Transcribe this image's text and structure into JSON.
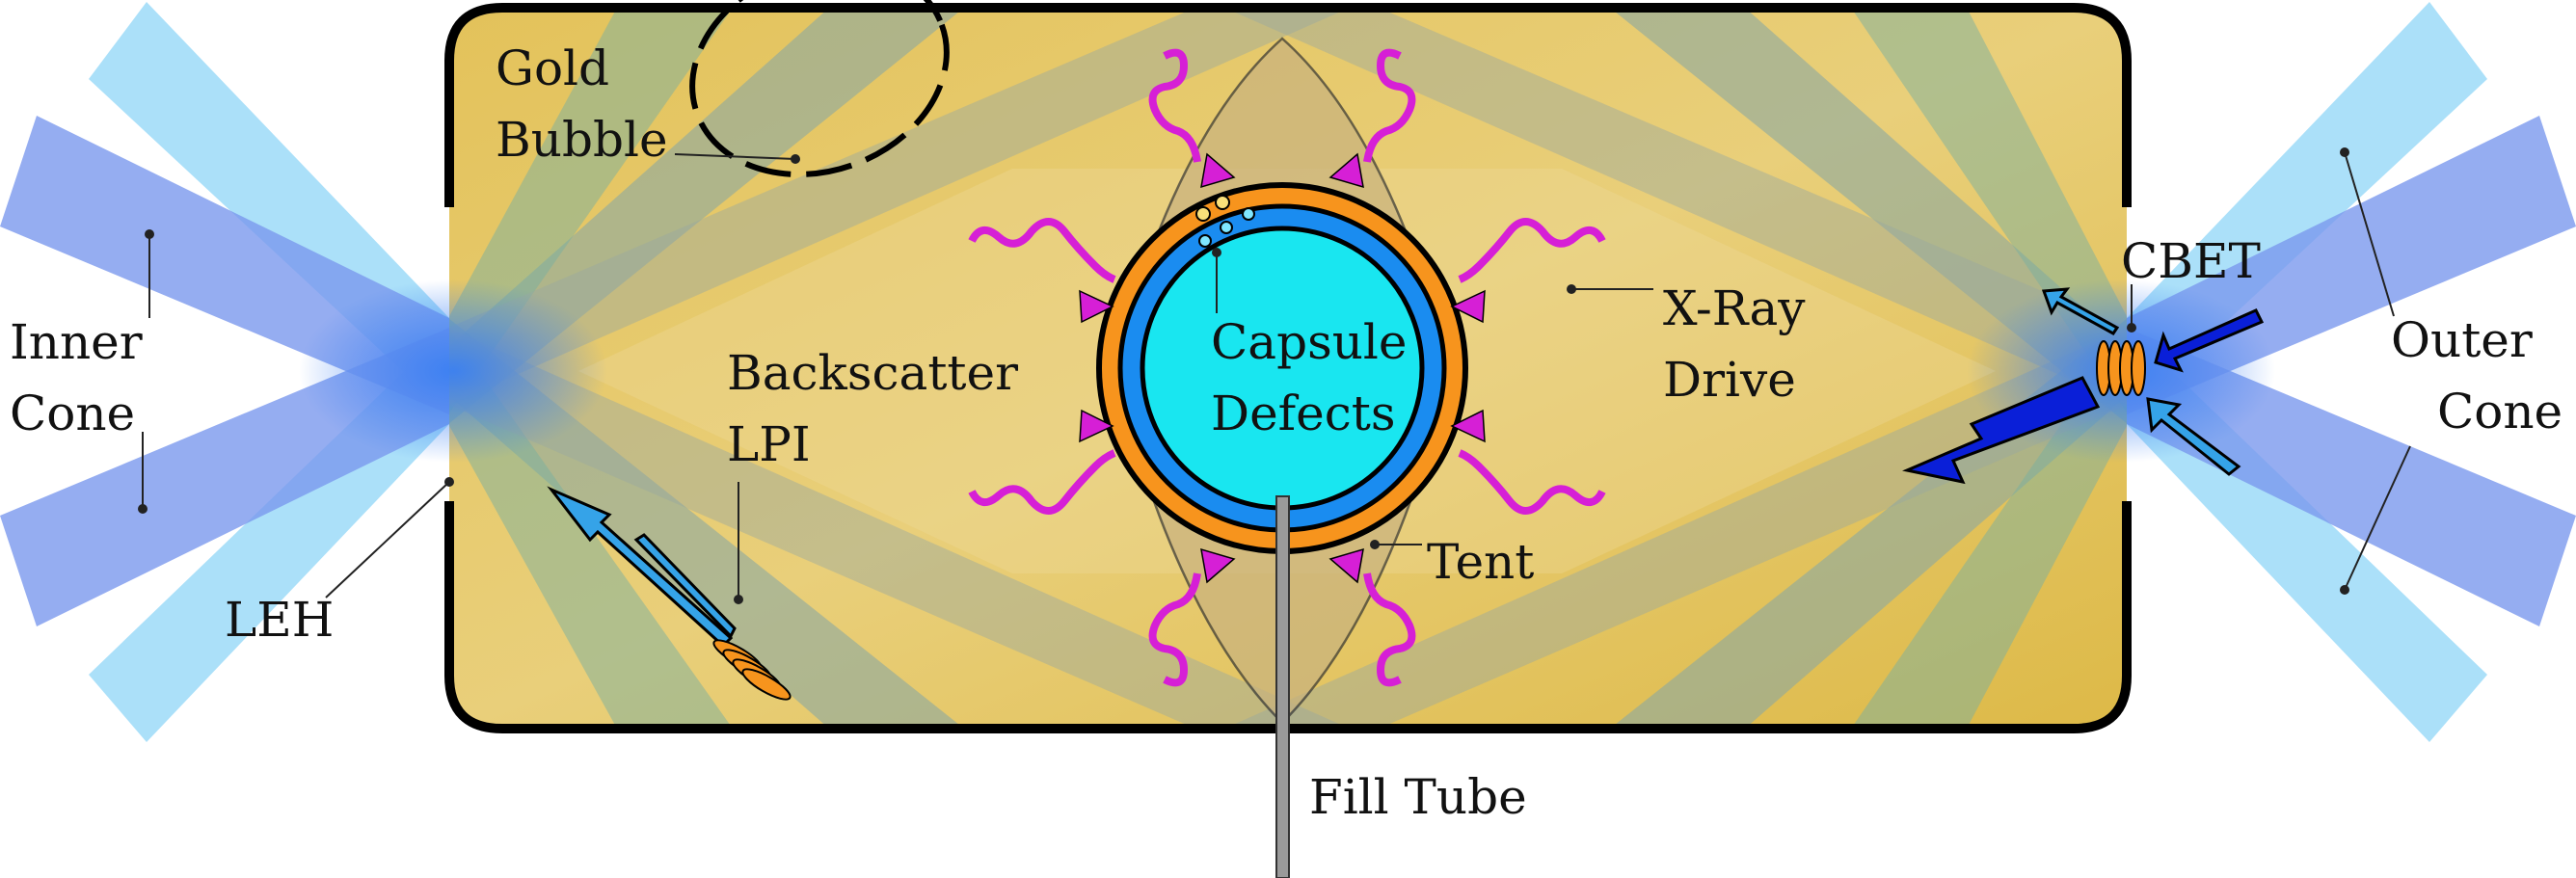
{
  "labels": {
    "gold_bubble": [
      "Gold",
      "Bubble"
    ],
    "inner_cone": [
      "Inner",
      "Cone"
    ],
    "outer_cone": [
      "Outer",
      "Cone"
    ],
    "backscatter": [
      "Backscatter",
      "LPI"
    ],
    "capsule_defects": [
      "Capsule",
      "Defects"
    ],
    "xray_drive": [
      "X-Ray",
      "Drive"
    ],
    "cbet": "CBET",
    "tent": "Tent",
    "leh": "LEH",
    "fill_tube": "Fill Tube"
  },
  "colors": {
    "hohlraum_gold": "#e2c155",
    "hohlraum_wall": "#000000",
    "laser_light_blue": "#8fd6f7",
    "laser_mid_blue": "#7fa1ef",
    "laser_focus_blue": "#3b82f0",
    "capsule_ablator": "#f7941d",
    "capsule_ice": "#1a8cf0",
    "capsule_gas": "#19e6f0",
    "xray_wave": "#d61fd6",
    "cbet_arrow": "#0a1fd8",
    "backscatter_arrow": "#35a3e8",
    "fill_tube": "#9a9a9a"
  }
}
